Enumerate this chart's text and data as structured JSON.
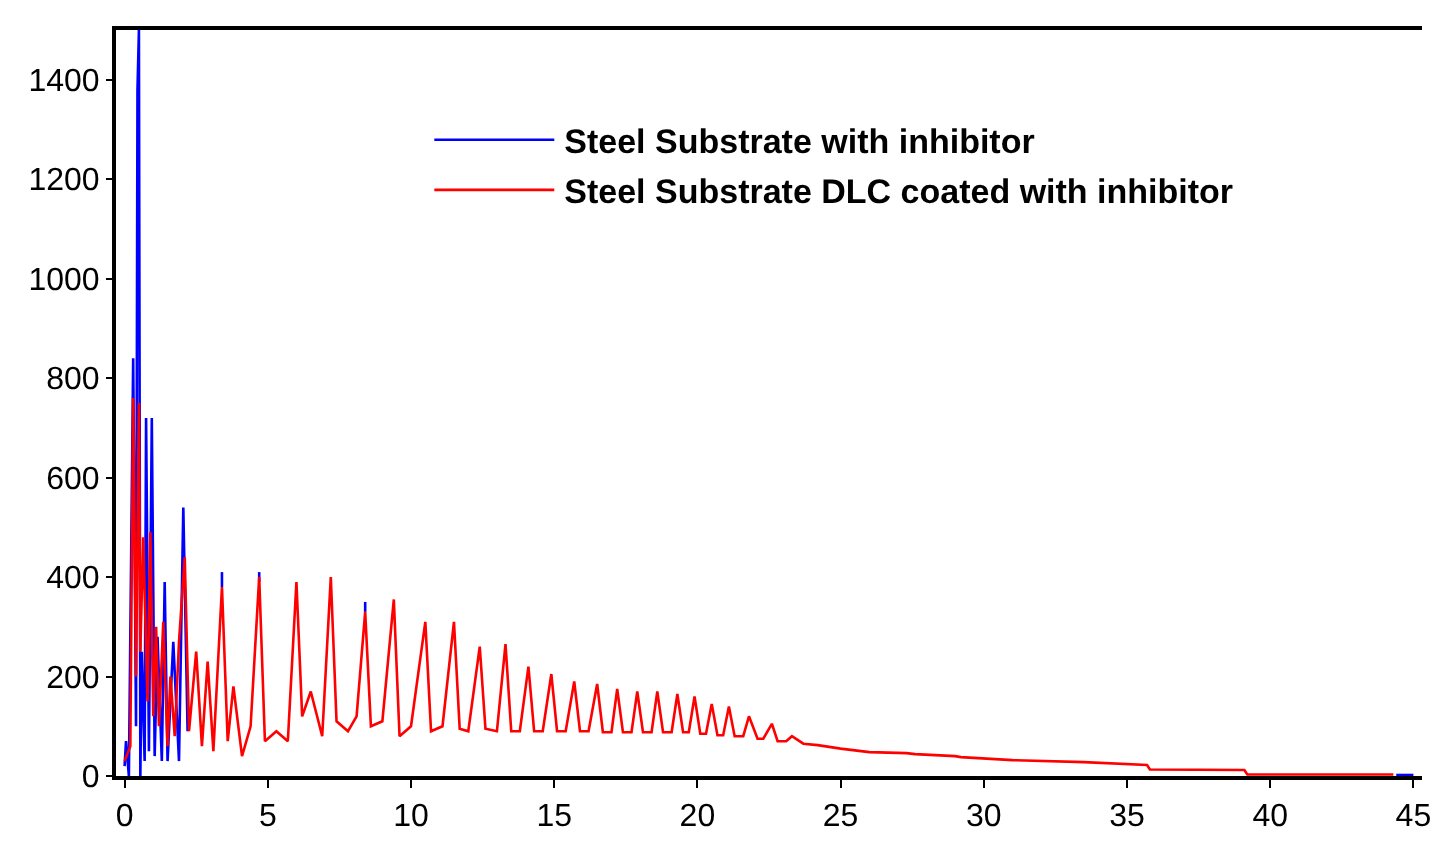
{
  "chart_data": {
    "type": "line",
    "xlim": [
      -0.3,
      45.3
    ],
    "xticks": [
      0,
      5,
      10,
      15,
      20,
      25,
      30,
      35,
      40,
      45
    ],
    "ylim": [
      0,
      1500
    ],
    "yticks": [
      0,
      200,
      400,
      600,
      800,
      1000,
      1200,
      1400
    ],
    "legend": "top",
    "marker": "none",
    "line_style": "solid",
    "series": [
      {
        "name": "Steel Substrate with inhibitor",
        "color": "#0000ff",
        "x": [
          0,
          0.05,
          0.15,
          0.3,
          0.4,
          0.45,
          0.5,
          0.55,
          0.6,
          0.7,
          0.75,
          0.85,
          0.95,
          1.05,
          1.15,
          1.3,
          1.4,
          1.5,
          1.7,
          1.9,
          2.05,
          2.2,
          3.3,
          3.4,
          3.4,
          4.6,
          4.7,
          4.7,
          8.3,
          8.4,
          8.4,
          39.0,
          44.4,
          45
        ],
        "values": [
          20,
          70,
          0,
          840,
          100,
          1380,
          1500,
          0,
          250,
          30,
          720,
          50,
          720,
          40,
          280,
          30,
          390,
          30,
          270,
          30,
          540,
          90,
          null,
          380,
          410,
          null,
          390,
          410,
          null,
          330,
          350,
          null,
          2,
          2
        ]
      },
      {
        "name": "Steel Substrate DLC coated with inhibitor",
        "color": "#ff0000",
        "x": [
          0,
          0.2,
          0.3,
          0.4,
          0.5,
          0.55,
          0.65,
          0.8,
          0.9,
          1.0,
          1.1,
          1.2,
          1.35,
          1.5,
          1.6,
          1.75,
          1.9,
          2.1,
          2.25,
          2.5,
          2.7,
          2.9,
          3.1,
          3.4,
          3.6,
          3.8,
          4.1,
          4.4,
          4.7,
          4.9,
          5.3,
          5.7,
          6.0,
          6.2,
          6.5,
          6.9,
          7.2,
          7.4,
          7.8,
          8.1,
          8.4,
          8.6,
          9.0,
          9.4,
          9.6,
          10.0,
          10.5,
          10.7,
          11.1,
          11.5,
          11.7,
          12.0,
          12.4,
          12.6,
          13.0,
          13.3,
          13.5,
          13.8,
          14.1,
          14.3,
          14.6,
          14.9,
          15.1,
          15.4,
          15.7,
          15.9,
          16.2,
          16.5,
          16.7,
          17.0,
          17.2,
          17.4,
          17.7,
          17.9,
          18.1,
          18.4,
          18.6,
          18.8,
          19.1,
          19.3,
          19.5,
          19.7,
          19.9,
          20.1,
          20.3,
          20.5,
          20.7,
          20.9,
          21.1,
          21.3,
          21.6,
          21.8,
          22.1,
          22.3,
          22.6,
          22.8,
          23.1,
          23.3,
          23.7,
          24.2,
          25.0,
          26.0,
          27.3,
          27.6,
          29.0,
          29.2,
          31.0,
          33.5,
          35.7,
          35.8,
          39.1,
          39.2,
          44.3
        ],
        "values": [
          30,
          60,
          760,
          200,
          750,
          250,
          480,
          150,
          490,
          120,
          300,
          100,
          310,
          60,
          200,
          80,
          270,
          440,
          90,
          250,
          60,
          230,
          50,
          380,
          70,
          180,
          40,
          100,
          400,
          70,
          90,
          70,
          390,
          120,
          170,
          80,
          400,
          110,
          90,
          120,
          330,
          100,
          110,
          355,
          80,
          100,
          310,
          90,
          100,
          310,
          95,
          90,
          260,
          95,
          90,
          265,
          90,
          90,
          220,
          90,
          90,
          205,
          90,
          90,
          190,
          90,
          90,
          185,
          88,
          88,
          175,
          88,
          88,
          170,
          88,
          88,
          170,
          88,
          88,
          165,
          88,
          88,
          160,
          85,
          85,
          145,
          82,
          82,
          140,
          80,
          80,
          120,
          75,
          75,
          105,
          70,
          70,
          80,
          65,
          62,
          55,
          48,
          46,
          44,
          40,
          38,
          32,
          28,
          22,
          13,
          12,
          3,
          3
        ]
      }
    ]
  }
}
